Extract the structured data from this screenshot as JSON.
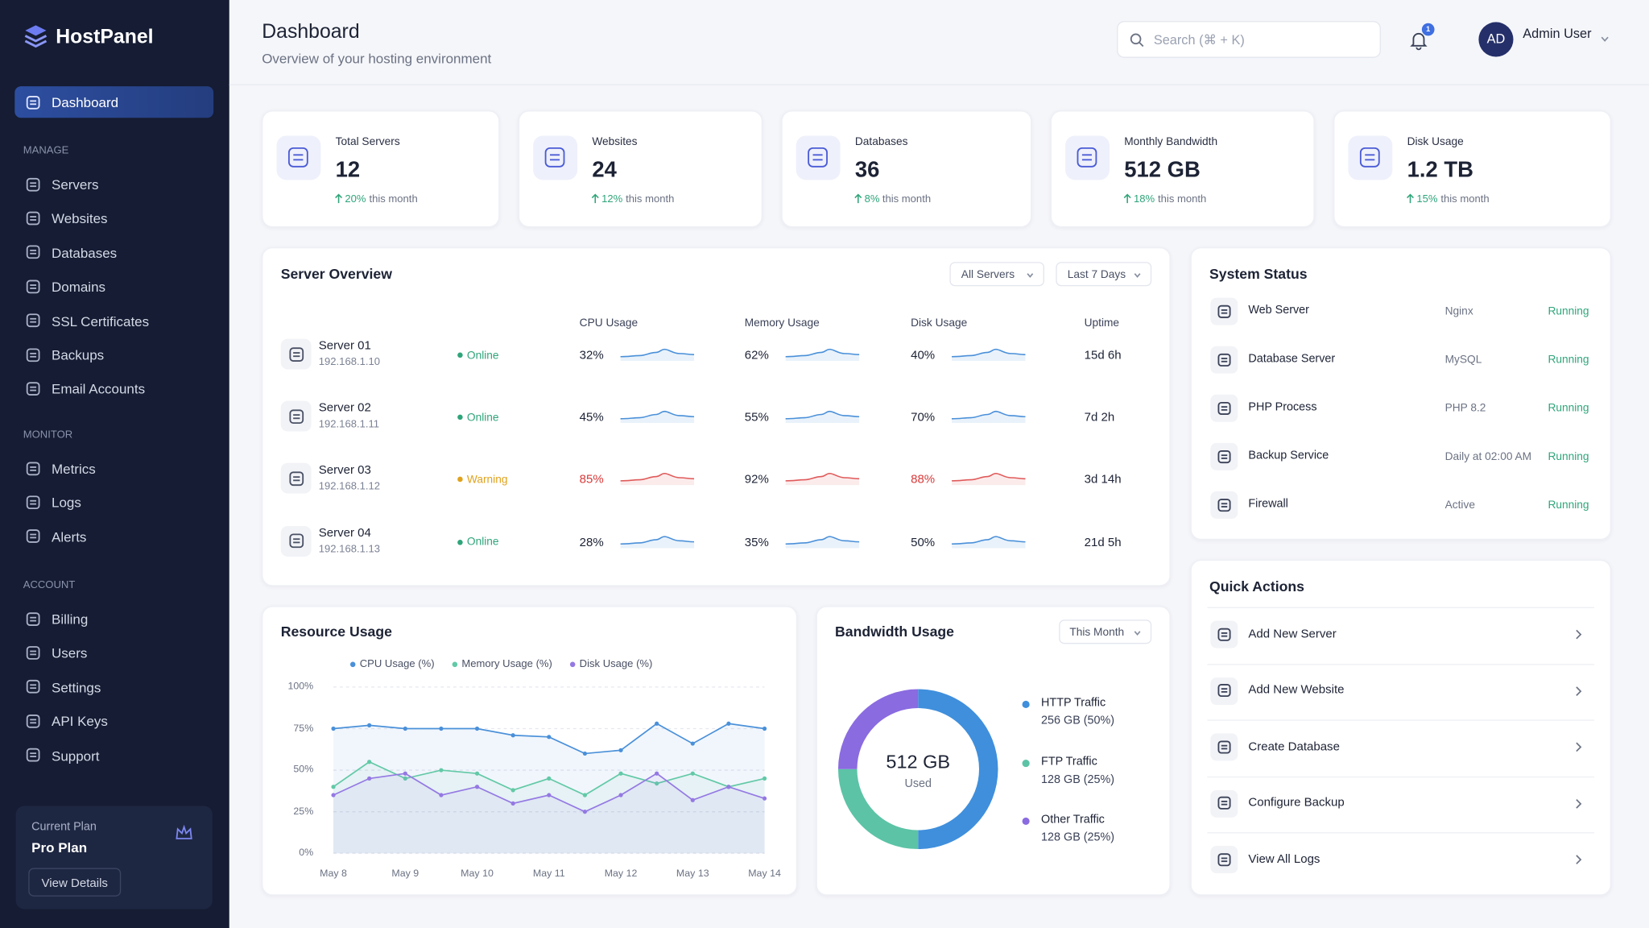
{
  "sidebar": {
    "brand": "HostPanel",
    "active": "Dashboard",
    "sections": [
      {
        "title": "MANAGE",
        "items": [
          "Servers",
          "Websites",
          "Databases",
          "Domains",
          "SSL Certificates",
          "Backups",
          "Email Accounts"
        ]
      },
      {
        "title": "MONITOR",
        "items": [
          "Metrics",
          "Logs",
          "Alerts"
        ]
      },
      {
        "title": "ACCOUNT",
        "items": [
          "Billing",
          "Users",
          "Settings",
          "API Keys",
          "Support"
        ]
      }
    ],
    "plan": {
      "label": "Current Plan",
      "name": "Pro Plan",
      "button": "View Details"
    }
  },
  "header": {
    "title": "Dashboard",
    "subtitle": "Overview of your hosting environment",
    "search": "Search (⌘ + K)",
    "notifications": "1",
    "avatar": "AD",
    "user": "Admin User"
  },
  "stats": [
    {
      "label": "Total Servers",
      "value": "12",
      "change": "20%",
      "note": "this month"
    },
    {
      "label": "Websites",
      "value": "24",
      "change": "12%",
      "note": "this month"
    },
    {
      "label": "Databases",
      "value": "36",
      "change": "8%",
      "note": "this month"
    },
    {
      "label": "Monthly Bandwidth",
      "value": "512 GB",
      "change": "18%",
      "note": "this month"
    },
    {
      "label": "Disk Usage",
      "value": "1.2 TB",
      "change": "15%",
      "note": "this month"
    }
  ],
  "server_overview": {
    "title": "Server Overview",
    "filters": [
      "All Servers",
      "Last 7 Days"
    ],
    "columns": [
      "CPU Usage",
      "Memory Usage",
      "Disk Usage",
      "Uptime"
    ],
    "rows": [
      {
        "name": "Server 01",
        "ip": "192.168.1.10",
        "status": "Online",
        "cpu": "32%",
        "memory": "62%",
        "disk": "40%",
        "uptime": "15d 6h"
      },
      {
        "name": "Server 02",
        "ip": "192.168.1.11",
        "status": "Online",
        "cpu": "45%",
        "memory": "55%",
        "disk": "70%",
        "uptime": "7d 2h"
      },
      {
        "name": "Server 03",
        "ip": "192.168.1.12",
        "status": "Warning",
        "cpu": "85%",
        "memory": "92%",
        "disk": "88%",
        "uptime": "3d 14h"
      },
      {
        "name": "Server 04",
        "ip": "192.168.1.13",
        "status": "Online",
        "cpu": "28%",
        "memory": "35%",
        "disk": "50%",
        "uptime": "21d 5h"
      }
    ]
  },
  "system_status": {
    "title": "System Status",
    "rows": [
      {
        "name": "Web Server",
        "detail": "Nginx",
        "state": "Running"
      },
      {
        "name": "Database Server",
        "detail": "MySQL",
        "state": "Running"
      },
      {
        "name": "PHP Process",
        "detail": "PHP 8.2",
        "state": "Running"
      },
      {
        "name": "Backup Service",
        "detail": "Daily at 02:00 AM",
        "state": "Running"
      },
      {
        "name": "Firewall",
        "detail": "Active",
        "state": "Running"
      }
    ]
  },
  "quick_actions": {
    "title": "Quick Actions",
    "items": [
      "Add New Server",
      "Add New Website",
      "Create Database",
      "Configure Backup",
      "View All Logs"
    ]
  },
  "chart_data": [
    {
      "type": "line",
      "title": "Resource Usage",
      "categories": [
        "May 8",
        null,
        "May 9",
        null,
        "May 10",
        null,
        "May 11",
        null,
        "May 12",
        null,
        "May 13",
        null,
        "May 14"
      ],
      "series": [
        {
          "name": "CPU Usage (%)",
          "color": "#4a90d9",
          "values": [
            75,
            77,
            75,
            75,
            75,
            71,
            70,
            60,
            62,
            78,
            66,
            78,
            75
          ]
        },
        {
          "name": "Memory Usage (%)",
          "color": "#62c9a6",
          "values": [
            40,
            55,
            45,
            50,
            48,
            38,
            45,
            35,
            48,
            42,
            48,
            40,
            45
          ]
        },
        {
          "name": "Disk Usage (%)",
          "color": "#9479e3",
          "values": [
            35,
            45,
            48,
            35,
            40,
            30,
            35,
            25,
            35,
            48,
            32,
            40,
            33
          ]
        }
      ],
      "ylim": [
        0,
        100
      ],
      "yticks": [
        {
          "value": 0,
          "label": "0%"
        },
        {
          "value": 25,
          "label": "25%"
        },
        {
          "value": 50,
          "label": "50%"
        },
        {
          "value": 75,
          "label": "75%"
        },
        {
          "value": 100,
          "label": "100%"
        }
      ],
      "grid": true
    },
    {
      "type": "pie",
      "title": "Bandwidth Usage",
      "filter": "This Month",
      "center_value": "512 GB",
      "center_label": "Used",
      "categories": [
        "HTTP Traffic",
        "FTP Traffic",
        "Other Traffic"
      ],
      "values": [
        256,
        128,
        128
      ],
      "value_labels": [
        "256 GB (50%)",
        "128 GB (25%)",
        "128 GB (25%)"
      ],
      "colors": [
        "#3f8fdc",
        "#5cc3a6",
        "#8a6be0"
      ]
    }
  ]
}
